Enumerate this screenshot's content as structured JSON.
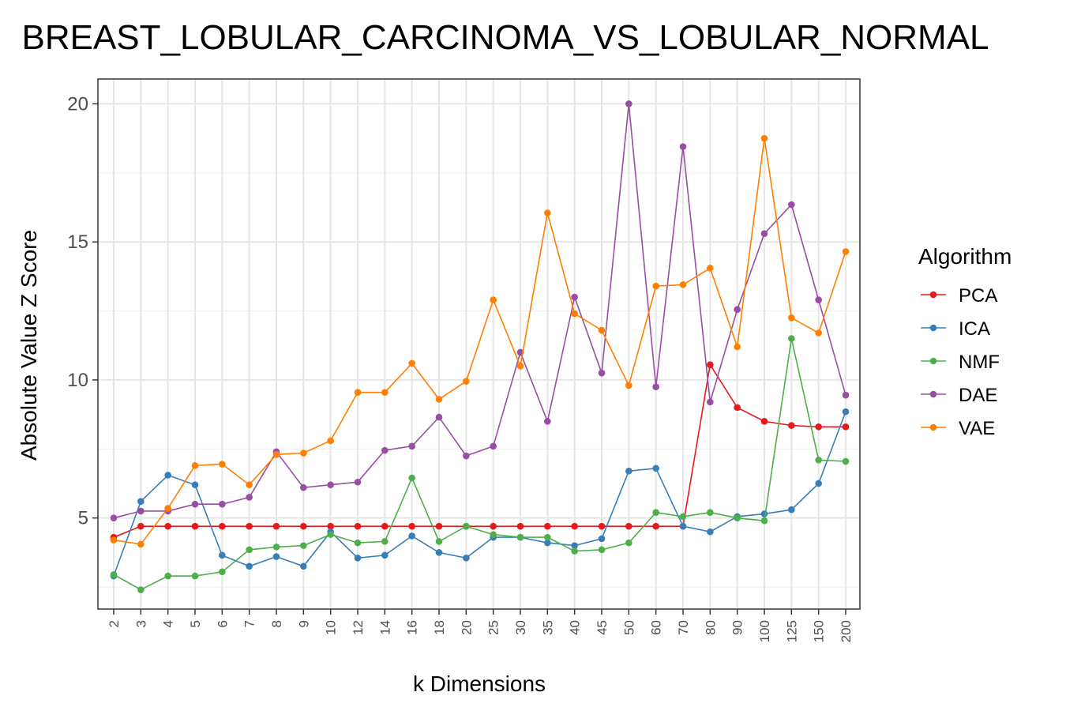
{
  "chart_data": {
    "type": "line",
    "title": "BREAST_LOBULAR_CARCINOMA_VS_LOBULAR_NORMAL",
    "xlabel": "k Dimensions",
    "ylabel": "Absolute Value Z Score",
    "ylim": [
      1.7,
      20.9
    ],
    "yticks": [
      5,
      10,
      15,
      20
    ],
    "grid": true,
    "legend_title": "Algorithm",
    "legend_position": "right",
    "categories": [
      "2",
      "3",
      "4",
      "5",
      "6",
      "7",
      "8",
      "9",
      "10",
      "12",
      "14",
      "16",
      "18",
      "20",
      "25",
      "30",
      "35",
      "40",
      "45",
      "50",
      "60",
      "70",
      "80",
      "90",
      "100",
      "125",
      "150",
      "200"
    ],
    "series": [
      {
        "name": "PCA",
        "color": "#e41a1c",
        "values": [
          4.3,
          4.7,
          4.7,
          4.7,
          4.7,
          4.7,
          4.7,
          4.7,
          4.7,
          4.7,
          4.7,
          4.7,
          4.7,
          4.7,
          4.7,
          4.7,
          4.7,
          4.7,
          4.7,
          4.7,
          4.7,
          4.7,
          10.55,
          9.0,
          8.5,
          8.35,
          8.3,
          8.3
        ]
      },
      {
        "name": "ICA",
        "color": "#377eb8",
        "values": [
          2.9,
          5.6,
          6.55,
          6.2,
          3.65,
          3.25,
          3.6,
          3.25,
          4.5,
          3.55,
          3.65,
          4.35,
          3.75,
          3.55,
          4.3,
          4.3,
          4.1,
          4.0,
          4.25,
          6.7,
          6.8,
          4.7,
          4.5,
          5.05,
          5.15,
          5.3,
          6.25,
          8.85
        ]
      },
      {
        "name": "NMF",
        "color": "#4daf4a",
        "values": [
          2.95,
          2.4,
          2.9,
          2.9,
          3.05,
          3.85,
          3.95,
          4.0,
          4.4,
          4.1,
          4.15,
          6.45,
          4.15,
          4.7,
          4.4,
          4.3,
          4.3,
          3.8,
          3.85,
          4.1,
          5.2,
          5.05,
          5.2,
          5.0,
          4.9,
          11.5,
          7.1,
          7.05
        ]
      },
      {
        "name": "DAE",
        "color": "#984ea3",
        "values": [
          5.0,
          5.25,
          5.25,
          5.5,
          5.5,
          5.75,
          7.4,
          6.1,
          6.2,
          6.3,
          7.45,
          7.6,
          8.65,
          7.25,
          7.6,
          11.0,
          8.5,
          13.0,
          10.25,
          20.0,
          9.75,
          18.45,
          9.2,
          12.55,
          15.3,
          16.35,
          12.9,
          9.45
        ]
      },
      {
        "name": "VAE",
        "color": "#ff7f00",
        "values": [
          4.2,
          4.05,
          5.35,
          6.9,
          6.95,
          6.2,
          7.3,
          7.35,
          7.8,
          9.55,
          9.55,
          10.6,
          9.3,
          9.95,
          12.9,
          10.5,
          16.05,
          12.4,
          11.8,
          9.8,
          13.4,
          13.45,
          14.05,
          11.2,
          18.75,
          12.25,
          11.7,
          14.65
        ]
      }
    ]
  }
}
